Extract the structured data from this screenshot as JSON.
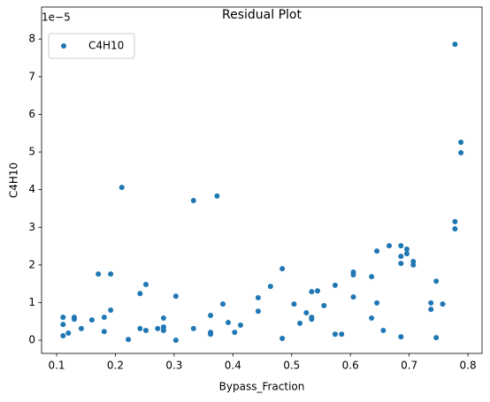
{
  "chart_data": {
    "type": "scatter",
    "title": "Residual Plot",
    "xlabel": "Bypass_Fraction",
    "ylabel": "C4H10",
    "offset_text": "1e−5",
    "x": [
      0.111,
      0.111,
      0.111,
      0.12,
      0.13,
      0.13,
      0.142,
      0.16,
      0.171,
      0.181,
      0.181,
      0.192,
      0.192,
      0.211,
      0.222,
      0.242,
      0.242,
      0.252,
      0.252,
      0.272,
      0.282,
      0.282,
      0.282,
      0.303,
      0.303,
      0.333,
      0.333,
      0.362,
      0.362,
      0.362,
      0.373,
      0.383,
      0.392,
      0.403,
      0.413,
      0.443,
      0.443,
      0.464,
      0.484,
      0.484,
      0.504,
      0.514,
      0.525,
      0.534,
      0.534,
      0.534,
      0.544,
      0.555,
      0.574,
      0.574,
      0.585,
      0.605,
      0.605,
      0.605,
      0.636,
      0.636,
      0.645,
      0.645,
      0.656,
      0.666,
      0.686,
      0.686,
      0.686,
      0.686,
      0.696,
      0.696,
      0.707,
      0.707,
      0.737,
      0.737,
      0.746,
      0.746,
      0.757,
      0.778,
      0.778,
      0.778,
      0.788,
      0.788
    ],
    "series": [
      {
        "name": "C4H10",
        "color": "#1f77b4",
        "values": [
          0.61,
          0.42,
          0.12,
          0.19,
          0.61,
          0.56,
          0.31,
          0.54,
          1.76,
          0.61,
          0.23,
          1.76,
          0.8,
          4.06,
          0.02,
          1.24,
          0.31,
          1.48,
          0.26,
          0.31,
          0.59,
          0.35,
          0.26,
          1.17,
          0.0,
          3.71,
          0.31,
          0.66,
          0.21,
          0.16,
          3.83,
          0.96,
          0.47,
          0.21,
          0.4,
          1.13,
          0.77,
          1.43,
          1.9,
          0.05,
          0.96,
          0.45,
          0.73,
          1.29,
          0.61,
          0.56,
          1.31,
          0.92,
          1.46,
          0.16,
          0.16,
          1.81,
          1.74,
          1.15,
          1.69,
          0.59,
          2.37,
          0.99,
          0.26,
          2.51,
          2.51,
          2.23,
          2.04,
          0.09,
          2.42,
          2.3,
          2.09,
          2.0,
          0.99,
          0.82,
          1.57,
          0.07,
          0.96,
          7.86,
          3.15,
          2.96,
          5.26,
          4.98
        ]
      }
    ],
    "xlim": [
      0.0744,
      0.824
    ],
    "ylim": [
      -0.35,
      8.85
    ],
    "xticks": [
      0.1,
      0.2,
      0.3,
      0.4,
      0.5,
      0.6,
      0.7,
      0.8
    ],
    "yticks": [
      0,
      1,
      2,
      3,
      4,
      5,
      6,
      7,
      8
    ],
    "legend": "upper left",
    "grid": false
  }
}
